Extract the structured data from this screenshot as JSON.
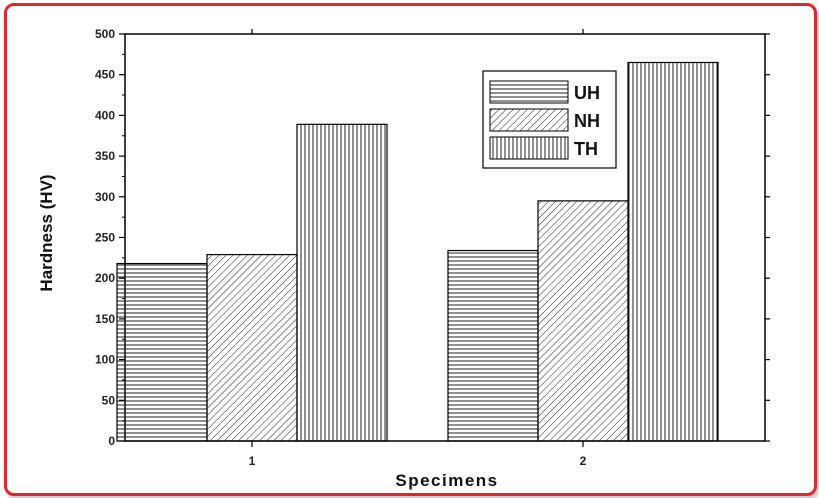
{
  "chart_data": {
    "type": "bar",
    "categories": [
      "1",
      "2"
    ],
    "series": [
      {
        "name": "UH",
        "values": [
          218,
          234
        ],
        "pattern": "horizontal"
      },
      {
        "name": "NH",
        "values": [
          229,
          295
        ],
        "pattern": "diagonal"
      },
      {
        "name": "TH",
        "values": [
          389,
          465
        ],
        "pattern": "vertical"
      }
    ],
    "xlabel": "Specimens",
    "ylabel": "Hardness (HV)",
    "ylim": [
      0,
      500
    ],
    "yticks": [
      0,
      50,
      100,
      150,
      200,
      250,
      300,
      350,
      400,
      450,
      500
    ],
    "grid": false,
    "legend_position": "top-right",
    "colors": {
      "frame_border": "#e0282f",
      "bar_stroke": "#000000",
      "pattern_line": "#222222"
    }
  }
}
